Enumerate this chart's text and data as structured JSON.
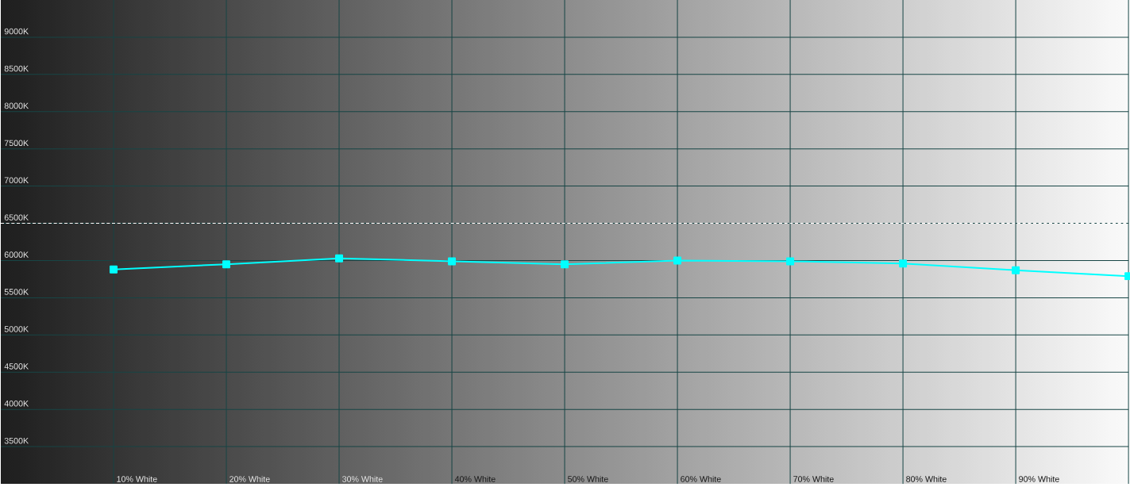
{
  "chart_data": {
    "type": "line",
    "categories": [
      "10% White",
      "20% White",
      "30% White",
      "40% White",
      "50% White",
      "60% White",
      "70% White",
      "80% White",
      "90% White",
      null
    ],
    "series": [
      {
        "color": "#00ffff",
        "values": [
          5880,
          5950,
          6030,
          5990,
          5950,
          6000,
          5990,
          5960,
          5870,
          5790
        ]
      }
    ],
    "ylim": [
      3000,
      9500
    ],
    "yticks": [
      {
        "value": 3500,
        "label": "3500K"
      },
      {
        "value": 4000,
        "label": "4000K"
      },
      {
        "value": 4500,
        "label": "4500K"
      },
      {
        "value": 5000,
        "label": "5000K"
      },
      {
        "value": 5500,
        "label": "5500K"
      },
      {
        "value": 6000,
        "label": "6000K"
      },
      {
        "value": 6500,
        "label": "6500K"
      },
      {
        "value": 7000,
        "label": "7000K"
      },
      {
        "value": 7500,
        "label": "7500K"
      },
      {
        "value": 8000,
        "label": "8000K"
      },
      {
        "value": 8500,
        "label": "8500K"
      },
      {
        "value": 9000,
        "label": "9000K"
      }
    ],
    "ref_lines": [
      {
        "axis": "y",
        "value": 6500,
        "color": "#ffffff",
        "line_style": "dashed"
      }
    ],
    "grid": true,
    "marker": "square",
    "line_style": "solid"
  }
}
